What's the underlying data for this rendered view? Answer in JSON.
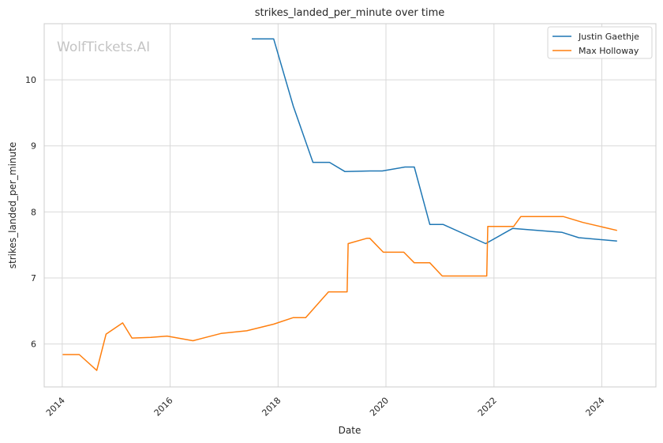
{
  "chart_data": {
    "type": "line",
    "title": "strikes_landed_per_minute over time",
    "xlabel": "Date",
    "ylabel": "strikes_landed_per_minute",
    "watermark": "WolfTickets.AI",
    "xlim": [
      "2013-09-01",
      "2025-01-01"
    ],
    "ylim": [
      5.35,
      10.85
    ],
    "xticks": [
      {
        "value": "2014-01-01",
        "label": "2014"
      },
      {
        "value": "2016-01-01",
        "label": "2016"
      },
      {
        "value": "2018-01-01",
        "label": "2018"
      },
      {
        "value": "2020-01-01",
        "label": "2020"
      },
      {
        "value": "2022-01-01",
        "label": "2022"
      },
      {
        "value": "2024-01-01",
        "label": "2024"
      }
    ],
    "yticks": [
      6,
      7,
      8,
      9,
      10
    ],
    "grid": true,
    "legend_position": "top-right",
    "series": [
      {
        "name": "Justin Gaethje",
        "color": "#1f77b4",
        "x": [
          "2017-07-07",
          "2017-12-02",
          "2018-04-14",
          "2018-08-25",
          "2018-12-15",
          "2019-03-30",
          "2019-09-14",
          "2019-12-07",
          "2020-05-09",
          "2020-07-11",
          "2020-10-24",
          "2021-01-23",
          "2021-11-06",
          "2022-05-07",
          "2023-04-08",
          "2023-07-29",
          "2024-04-13"
        ],
        "values": [
          10.62,
          10.62,
          9.6,
          8.75,
          8.75,
          8.61,
          8.62,
          8.62,
          8.68,
          8.68,
          7.81,
          7.81,
          7.52,
          7.75,
          7.69,
          7.61,
          7.56
        ]
      },
      {
        "name": "Max Holloway",
        "color": "#ff7f0e",
        "x": [
          "2014-01-04",
          "2014-04-26",
          "2014-08-23",
          "2014-10-25",
          "2015-02-14",
          "2015-04-18",
          "2015-08-23",
          "2015-12-12",
          "2016-06-04",
          "2016-12-10",
          "2017-06-03",
          "2017-12-02",
          "2018-04-14",
          "2018-07-07",
          "2018-12-08",
          "2019-04-13",
          "2019-04-20",
          "2019-08-24",
          "2019-09-14",
          "2019-12-14",
          "2020-05-01",
          "2020-07-11",
          "2020-10-24",
          "2021-01-16",
          "2021-11-13",
          "2021-11-20",
          "2022-05-14",
          "2022-07-02",
          "2023-04-15",
          "2023-08-26",
          "2024-04-13"
        ],
        "values": [
          5.84,
          5.84,
          5.6,
          6.15,
          6.32,
          6.09,
          6.1,
          6.12,
          6.05,
          6.16,
          6.2,
          6.3,
          6.4,
          6.4,
          6.79,
          6.79,
          7.52,
          7.6,
          7.6,
          7.39,
          7.39,
          7.23,
          7.23,
          7.03,
          7.03,
          7.78,
          7.78,
          7.93,
          7.93,
          7.84,
          7.72
        ]
      }
    ]
  }
}
